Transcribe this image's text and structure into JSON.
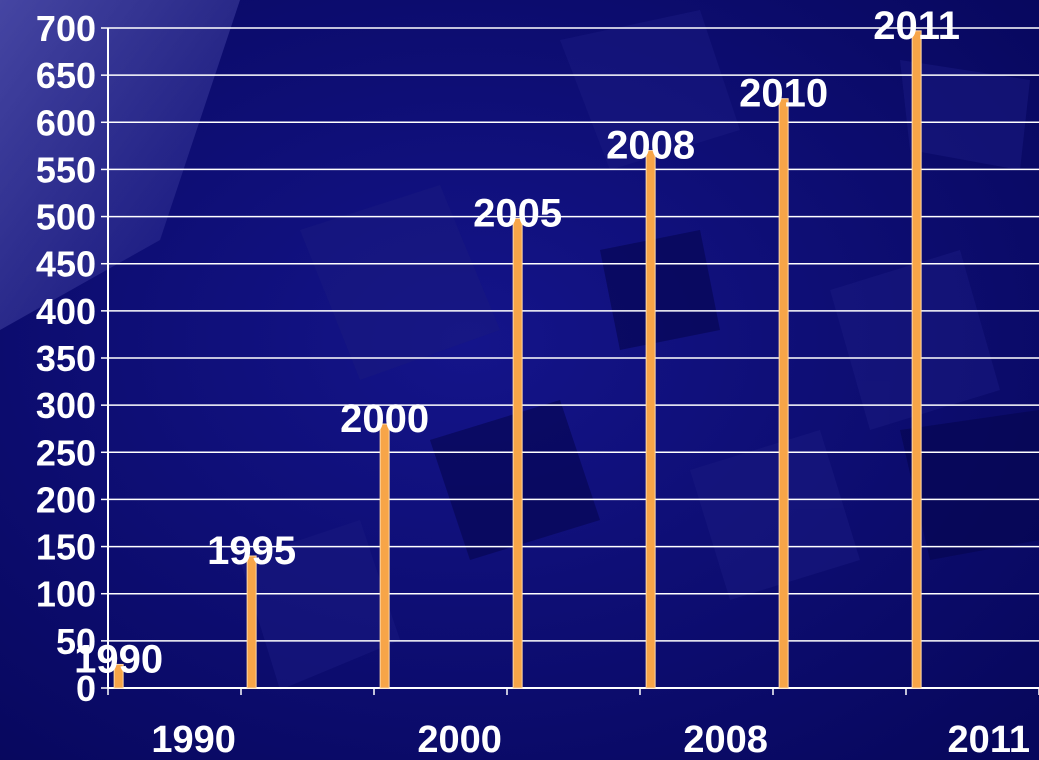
{
  "chart_data": {
    "type": "bar",
    "categories": [
      "1990",
      "1995",
      "2000",
      "2005",
      "2008",
      "2010",
      "2011"
    ],
    "values": [
      25,
      140,
      280,
      498,
      570,
      625,
      697
    ],
    "data_labels": [
      "1990",
      "1995",
      "2000",
      "2005",
      "2008",
      "2010",
      "2011"
    ],
    "x_tick_labels": [
      "1990",
      "2000",
      "2008",
      "2011"
    ],
    "y_ticks": [
      0,
      50,
      100,
      150,
      200,
      250,
      300,
      350,
      400,
      450,
      500,
      550,
      600,
      650,
      700
    ],
    "ylim": [
      0,
      700
    ],
    "title": "",
    "xlabel": "",
    "ylabel": "",
    "grid": true,
    "legend": "none"
  },
  "colors": {
    "background": "#0b0b6e",
    "bar": "#f7a548",
    "bar_edge": "#ffd8a8",
    "grid": "#ffffff",
    "text": "#ffffff"
  }
}
